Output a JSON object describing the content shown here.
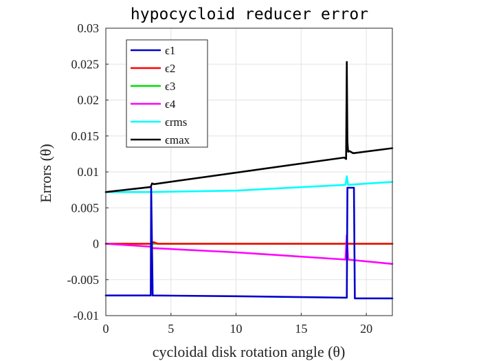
{
  "chart_data": {
    "type": "line",
    "title": "hypocycloid reducer error",
    "xlabel": "cycloidal disk rotation angle (θ)",
    "ylabel": "Errors (θ)",
    "xlim": [
      0,
      22
    ],
    "ylim": [
      -0.01,
      0.03
    ],
    "xticks": [
      0,
      5,
      10,
      15,
      20
    ],
    "xtick_labels": [
      "0",
      "5",
      "10",
      "15",
      "20"
    ],
    "yticks": [
      -0.01,
      -0.005,
      0,
      0.005,
      0.01,
      0.015,
      0.02,
      0.025,
      0.03
    ],
    "ytick_labels": [
      "-0.01",
      "-0.005",
      "0",
      "0.005",
      "0.01",
      "0.015",
      "0.02",
      "0.025",
      "0.03"
    ],
    "grid": true,
    "legend_position": "top-left",
    "series": [
      {
        "name": "ϵ1",
        "color": "#0000cc",
        "x": [
          0,
          3.45,
          3.48,
          3.6,
          10,
          18.5,
          18.55,
          18.65,
          19.05,
          19.12,
          22
        ],
        "y": [
          -0.0072,
          -0.0072,
          0.0078,
          -0.0072,
          -0.0073,
          -0.0075,
          0.0078,
          0.0078,
          0.0078,
          -0.0076,
          -0.0076
        ]
      },
      {
        "name": "ϵ2",
        "color": "#ff0000",
        "x": [
          0,
          3.45,
          3.55,
          3.7,
          4.0,
          18.4,
          18.5,
          18.6,
          22
        ],
        "y": [
          0,
          0,
          0.0002,
          0.0002,
          0,
          0,
          0.0002,
          0,
          0
        ]
      },
      {
        "name": "ϵ3",
        "color": "#00dd00",
        "x": [
          0,
          22
        ],
        "y": [
          0,
          0
        ]
      },
      {
        "name": "ϵ4",
        "color": "#ff00ff",
        "x": [
          0,
          3.45,
          3.6,
          10,
          18.4,
          18.5,
          18.6,
          22
        ],
        "y": [
          0,
          -0.0004,
          -0.0006,
          -0.0012,
          -0.0022,
          0.0012,
          -0.0022,
          -0.0028
        ]
      },
      {
        "name": "ϵrms",
        "color": "#00ffff",
        "x": [
          0,
          3.45,
          10,
          18.4,
          18.5,
          18.6,
          22
        ],
        "y": [
          0.0072,
          0.0072,
          0.0074,
          0.0082,
          0.0094,
          0.0082,
          0.0086
        ]
      },
      {
        "name": "ϵmax",
        "color": "#000000",
        "x": [
          0,
          3.45,
          3.55,
          3.7,
          18.3,
          18.45,
          18.5,
          18.55,
          18.6,
          18.7,
          19.0,
          22
        ],
        "y": [
          0.0072,
          0.0079,
          0.0084,
          0.0083,
          0.012,
          0.0118,
          0.0253,
          0.0142,
          0.0128,
          0.0129,
          0.0126,
          0.0133
        ]
      }
    ]
  }
}
